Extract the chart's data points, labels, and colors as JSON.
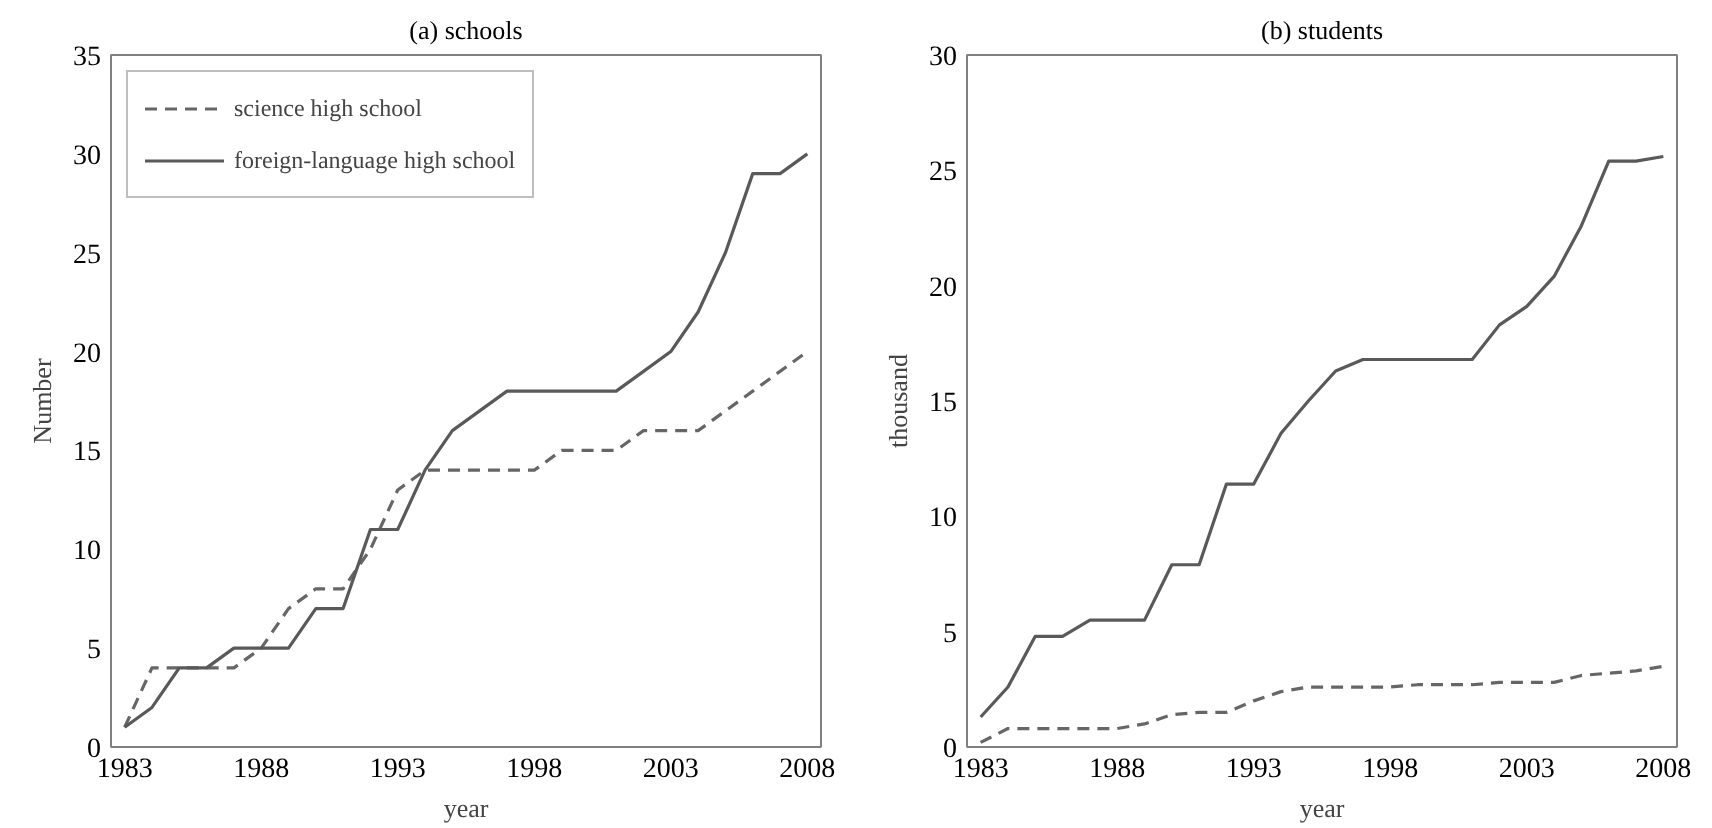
{
  "chart_data": [
    {
      "type": "line",
      "title": "(a) schools",
      "xlabel": "year",
      "ylabel": "Number",
      "x": [
        1983,
        1984,
        1985,
        1986,
        1987,
        1988,
        1989,
        1990,
        1991,
        1992,
        1993,
        1994,
        1995,
        1996,
        1997,
        1998,
        1999,
        2000,
        2001,
        2002,
        2003,
        2004,
        2005,
        2006,
        2007,
        2008
      ],
      "series": [
        {
          "name": "science high school",
          "color": "#666666",
          "line_style": "dashed",
          "values": [
            1,
            4,
            4,
            4,
            4,
            5,
            7,
            8,
            8,
            10,
            13,
            14,
            14,
            14,
            14,
            14,
            15,
            15,
            15,
            16,
            16,
            16,
            17,
            18,
            19,
            20
          ]
        },
        {
          "name": "foreign-language high school",
          "color": "#595959",
          "line_style": "solid",
          "values": [
            1,
            2,
            4,
            4,
            5,
            5,
            5,
            7,
            7,
            11,
            11,
            14,
            16,
            17,
            18,
            18,
            18,
            18,
            18,
            19,
            20,
            22,
            25,
            29,
            29,
            30
          ]
        }
      ],
      "xlim": [
        1982.5,
        2008.5
      ],
      "xticks": [
        1983,
        1988,
        1993,
        1998,
        2003,
        2008
      ],
      "ylim": [
        0,
        35
      ],
      "yticks": [
        0,
        5,
        10,
        15,
        20,
        25,
        30,
        35
      ],
      "grid": false,
      "legend": "top left"
    },
    {
      "type": "line",
      "title": "(b) students",
      "xlabel": "year",
      "ylabel": "thousand",
      "x": [
        1983,
        1984,
        1985,
        1986,
        1987,
        1988,
        1989,
        1990,
        1991,
        1992,
        1993,
        1994,
        1995,
        1996,
        1997,
        1998,
        1999,
        2000,
        2001,
        2002,
        2003,
        2004,
        2005,
        2006,
        2007,
        2008
      ],
      "series": [
        {
          "color": "#666666",
          "line_style": "dashed",
          "values": [
            0.2,
            0.8,
            0.8,
            0.8,
            0.8,
            0.8,
            1.0,
            1.4,
            1.5,
            1.5,
            2.0,
            2.4,
            2.6,
            2.6,
            2.6,
            2.6,
            2.7,
            2.7,
            2.7,
            2.8,
            2.8,
            2.8,
            3.1,
            3.2,
            3.3,
            3.5
          ]
        },
        {
          "color": "#595959",
          "line_style": "solid",
          "values": [
            1.3,
            2.6,
            4.8,
            4.8,
            5.5,
            5.5,
            5.5,
            7.9,
            7.9,
            11.4,
            11.4,
            13.6,
            15.0,
            16.3,
            16.8,
            16.8,
            16.8,
            16.8,
            16.8,
            18.3,
            19.1,
            20.4,
            22.6,
            25.4,
            25.4,
            25.6
          ]
        }
      ],
      "xlim": [
        1982.5,
        2008.5
      ],
      "xticks": [
        1983,
        1988,
        1993,
        1998,
        2003,
        2008
      ],
      "ylim": [
        0,
        30
      ],
      "yticks": [
        0,
        5,
        10,
        15,
        20,
        25,
        30
      ],
      "grid": false
    }
  ]
}
